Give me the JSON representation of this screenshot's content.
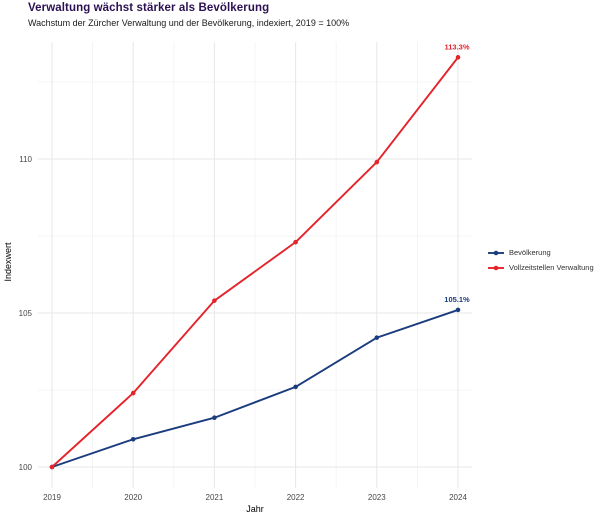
{
  "header": {
    "title": "Verwaltung wächst stärker als Bevölkerung",
    "subtitle": "Wachstum der Zürcher Verwaltung und der Bevölkerung, indexiert, 2019 = 100%"
  },
  "chart_data": {
    "type": "line",
    "title": "Verwaltung wächst stärker als Bevölkerung",
    "subtitle": "Wachstum der Zürcher Verwaltung und der Bevölkerung, indexiert, 2019 = 100%",
    "x": [
      2019,
      2020,
      2021,
      2022,
      2023,
      2024
    ],
    "series": [
      {
        "name": "Bevölkerung",
        "color": "#1b3c7e",
        "values": [
          100,
          100.9,
          101.6,
          102.6,
          104.2,
          105.1
        ],
        "end_label": "105.1%"
      },
      {
        "name": "Vollzeitstellen Verwaltung",
        "color": "#e4232b",
        "values": [
          100,
          102.4,
          105.4,
          107.3,
          109.9,
          113.3
        ],
        "end_label": "113.3%"
      }
    ],
    "xlabel": "Jahr",
    "ylabel": "Indexwert",
    "xticks": [
      2019,
      2020,
      2021,
      2022,
      2023,
      2024
    ],
    "xticks_minor": [
      2019.5,
      2020.5,
      2021.5,
      2022.5,
      2023.5
    ],
    "yticks": [
      100,
      105,
      110
    ],
    "yticks_minor": [
      102.5,
      107.5,
      112.5
    ],
    "xlim": [
      2018.83,
      2024.17
    ],
    "ylim": [
      99.3,
      113.8
    ],
    "grid": true,
    "legend_position": "right",
    "colors": {
      "background": "#ffffff",
      "grid_major": "#e7e7e7",
      "grid_minor": "#f2f2f2",
      "tick_text": "#474747"
    }
  }
}
